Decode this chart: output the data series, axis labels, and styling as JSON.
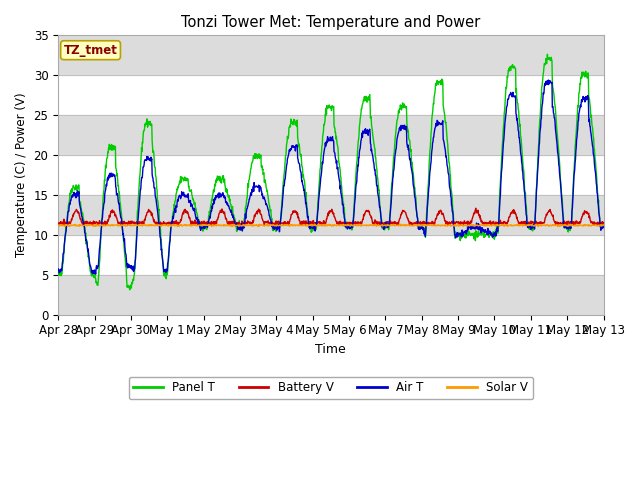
{
  "title": "Tonzi Tower Met: Temperature and Power",
  "xlabel": "Time",
  "ylabel": "Temperature (C) / Power (V)",
  "ylim": [
    0,
    35
  ],
  "n_days": 15,
  "annotation_text": "TZ_tmet",
  "annotation_color": "#8B0000",
  "annotation_bg": "#FFFFC0",
  "annotation_border": "#B8A000",
  "bg_band_color": "#DCDCDC",
  "tick_labels": [
    "Apr 28",
    "Apr 29",
    "Apr 30",
    "May 1",
    "May 2",
    "May 3",
    "May 4",
    "May 5",
    "May 6",
    "May 7",
    "May 8",
    "May 9",
    "May 10",
    "May 11",
    "May 12",
    "May 13"
  ],
  "legend_labels": [
    "Panel T",
    "Battery V",
    "Air T",
    "Solar V"
  ],
  "legend_colors": [
    "#00CC00",
    "#CC0000",
    "#0000CC",
    "#FF9900"
  ],
  "panel_color": "#00CC00",
  "battery_color": "#CC0000",
  "air_color": "#0000CC",
  "solar_color": "#FF9900",
  "panel_peaks": [
    16,
    21,
    24,
    17,
    17,
    20,
    24,
    26,
    27,
    26,
    29,
    10,
    31,
    32,
    30
  ],
  "panel_troughs": [
    5,
    3.5,
    5,
    11,
    11,
    11,
    11,
    11,
    11,
    11,
    10,
    10,
    11,
    11,
    11
  ],
  "air_peaks": [
    15,
    17.5,
    19.5,
    15,
    15,
    16,
    21,
    22,
    23,
    23.5,
    24,
    11,
    27.5,
    29,
    27
  ],
  "air_troughs": [
    5.5,
    6,
    5.5,
    11,
    11,
    11,
    11,
    11,
    11,
    11,
    10,
    10,
    11,
    11,
    11
  ],
  "battery_base": 11.5,
  "battery_peak_bump": 1.5,
  "solar_base": 11.2,
  "figsize": [
    6.4,
    4.8
  ],
  "dpi": 100
}
